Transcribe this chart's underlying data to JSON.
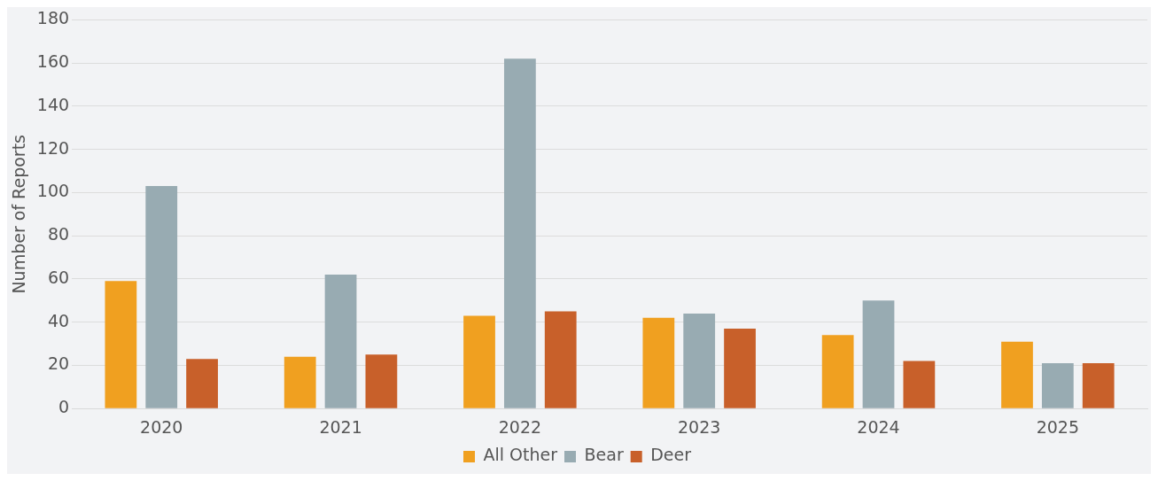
{
  "chart_data": {
    "type": "bar",
    "ylabel": "Number of Reports",
    "categories": [
      "2020",
      "2021",
      "2022",
      "2023",
      "2024",
      "2025"
    ],
    "series": [
      {
        "name": "All Other",
        "color": "#f0a020",
        "values": [
          59,
          24,
          43,
          42,
          34,
          31
        ]
      },
      {
        "name": "Bear",
        "color": "#98abb2",
        "values": [
          103,
          62,
          162,
          44,
          50,
          21
        ]
      },
      {
        "name": "Deer",
        "color": "#c8602a",
        "values": [
          23,
          25,
          45,
          37,
          22,
          21
        ]
      }
    ],
    "ylim": [
      0,
      180
    ],
    "yticks": [
      0,
      20,
      40,
      60,
      80,
      100,
      120,
      140,
      160,
      180
    ],
    "grid": "y",
    "legend": "bottom"
  }
}
